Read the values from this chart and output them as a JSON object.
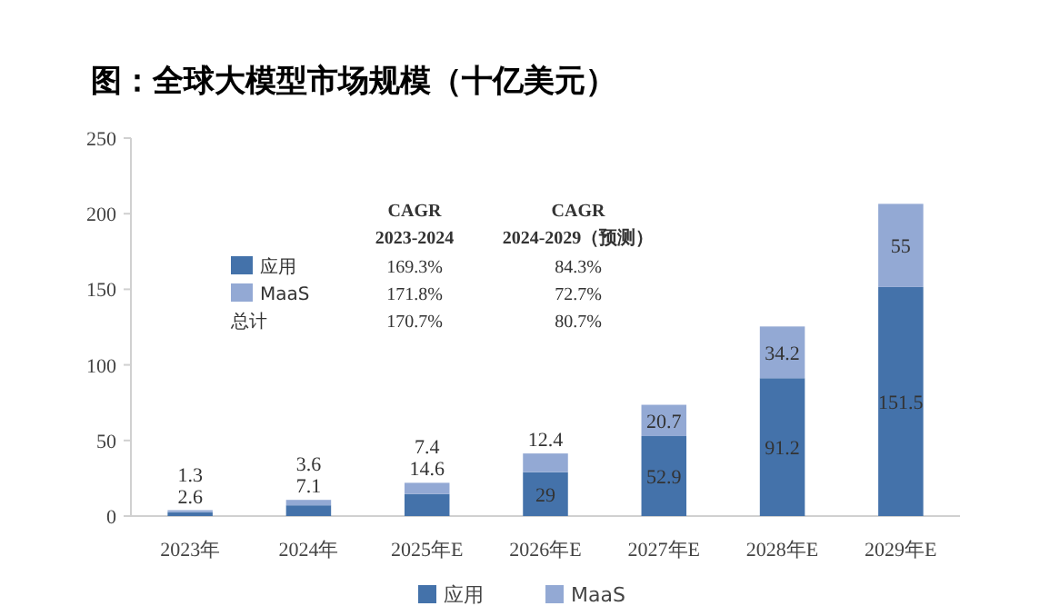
{
  "chart_data": {
    "type": "bar",
    "stacked": true,
    "title": "图：全球大模型市场规模（十亿美元）",
    "categories": [
      "2023年",
      "2024年",
      "2025年E",
      "2026年E",
      "2027年E",
      "2028年E",
      "2029年E"
    ],
    "series": [
      {
        "name": "应用",
        "color": "#4472aa",
        "values": [
          2.6,
          7.1,
          14.6,
          29,
          52.9,
          91.2,
          151.5
        ]
      },
      {
        "name": "MaaS",
        "color": "#93a9d4",
        "values": [
          1.3,
          3.6,
          7.4,
          12.4,
          20.7,
          34.2,
          55
        ]
      }
    ],
    "ylim": [
      0,
      250
    ],
    "yticks": [
      0,
      50,
      100,
      150,
      200,
      250
    ],
    "grid": false,
    "legend": "bottom",
    "data_labels": true,
    "annotations": [
      "CAGR",
      "2023-2024",
      "CAGR",
      "2024-2029（预测）",
      "应用",
      "MaaS",
      "总计",
      "169.3%",
      "171.8%",
      "170.7%",
      "84.3%",
      "72.7%",
      "80.7%"
    ]
  }
}
